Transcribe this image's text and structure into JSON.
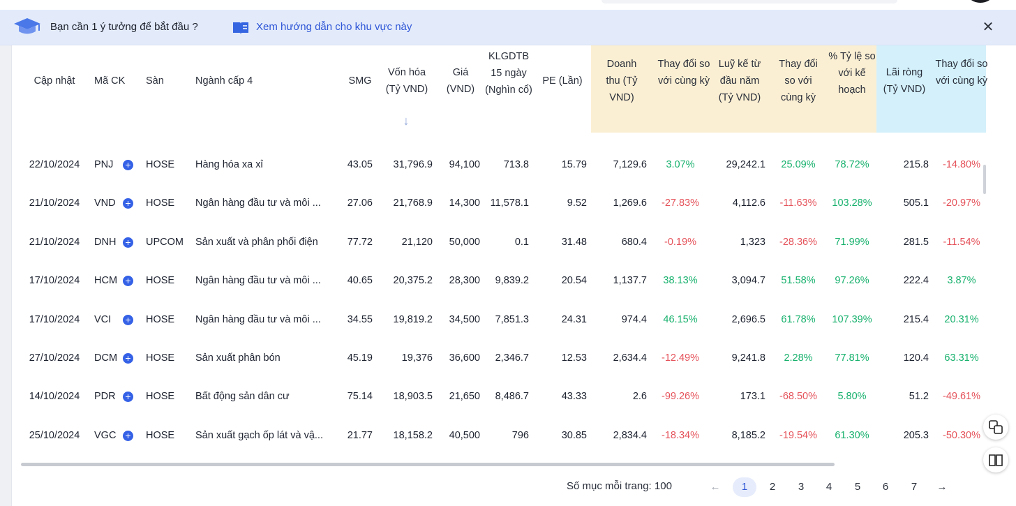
{
  "banner": {
    "idea_text": "Bạn cần 1 ý tưởng để bắt đầu ?",
    "guide_link": "Xem hướng dẫn cho khu vực này",
    "close_glyph": "✕",
    "icons": [
      "graduation-cap-icon",
      "book-icon",
      "close-icon"
    ],
    "colors": {
      "bg": "#e3ebfb",
      "link": "#2f56d6"
    }
  },
  "table": {
    "headers": {
      "updated": "Cập nhật",
      "ticker": "Mã CK",
      "exchange": "Sàn",
      "industry": "Ngành cấp 4",
      "smg": "SMG",
      "market_cap": "Vốn hóa (Tỷ VND)",
      "sort_glyph": "↓",
      "price": "Giá (VND)",
      "volume": "KLGDTB 15 ngày (Nghìn cổ)",
      "pe": "PE (Lần)",
      "revenue": "Doanh thu (Tỷ VND)",
      "revenue_change": "Thay đổi so với cùng kỳ",
      "ytd": "Luỹ kế từ đầu năm (Tỷ VND)",
      "ytd_change": "Thay đổi so với cùng kỳ",
      "plan_pct": "% Tỷ lệ so với kế hoạch",
      "net_profit": "Lãi ròng (Tỷ VND)",
      "profit_change": "Thay đổi so với cùng kỳ"
    },
    "header_colors": {
      "revenue_group": "#fbefd3",
      "profit_group": "#d3f0fb"
    },
    "rows": [
      {
        "date": "22/10/2024",
        "ticker": "PNJ",
        "exchange": "HOSE",
        "industry": "Hàng hóa xa xỉ",
        "smg": "43.05",
        "cap": "31,796.9",
        "price": "94,100",
        "vol": "713.8",
        "pe": "15.79",
        "rev": "7,129.6",
        "rev_chg": "3.07%",
        "ytd": "29,242.1",
        "ytd_chg": "25.09%",
        "plan": "78.72%",
        "profit": "215.8",
        "profit_chg": "-14.80%"
      },
      {
        "date": "21/10/2024",
        "ticker": "VND",
        "exchange": "HOSE",
        "industry": "Ngân hàng đầu tư và môi ...",
        "smg": "27.06",
        "cap": "21,768.9",
        "price": "14,300",
        "vol": "11,578.1",
        "pe": "9.52",
        "rev": "1,269.6",
        "rev_chg": "-27.83%",
        "ytd": "4,112.6",
        "ytd_chg": "-11.63%",
        "plan": "103.28%",
        "profit": "505.1",
        "profit_chg": "-20.97%"
      },
      {
        "date": "21/10/2024",
        "ticker": "DNH",
        "exchange": "UPCOM",
        "industry": "Sản xuất và phân phối điện",
        "smg": "77.72",
        "cap": "21,120",
        "price": "50,000",
        "vol": "0.1",
        "pe": "31.48",
        "rev": "680.4",
        "rev_chg": "-0.19%",
        "ytd": "1,323",
        "ytd_chg": "-28.36%",
        "plan": "71.99%",
        "profit": "281.5",
        "profit_chg": "-11.54%"
      },
      {
        "date": "17/10/2024",
        "ticker": "HCM",
        "exchange": "HOSE",
        "industry": "Ngân hàng đầu tư và môi ...",
        "smg": "40.65",
        "cap": "20,375.2",
        "price": "28,300",
        "vol": "9,839.2",
        "pe": "20.54",
        "rev": "1,137.7",
        "rev_chg": "38.13%",
        "ytd": "3,094.7",
        "ytd_chg": "51.58%",
        "plan": "97.26%",
        "profit": "222.4",
        "profit_chg": "3.87%"
      },
      {
        "date": "17/10/2024",
        "ticker": "VCI",
        "exchange": "HOSE",
        "industry": "Ngân hàng đầu tư và môi ...",
        "smg": "34.55",
        "cap": "19,819.2",
        "price": "34,500",
        "vol": "7,851.3",
        "pe": "24.31",
        "rev": "974.4",
        "rev_chg": "46.15%",
        "ytd": "2,696.5",
        "ytd_chg": "61.78%",
        "plan": "107.39%",
        "profit": "215.4",
        "profit_chg": "20.31%"
      },
      {
        "date": "27/10/2024",
        "ticker": "DCM",
        "exchange": "HOSE",
        "industry": "Sản xuất phân bón",
        "smg": "45.19",
        "cap": "19,376",
        "price": "36,600",
        "vol": "2,346.7",
        "pe": "12.53",
        "rev": "2,634.4",
        "rev_chg": "-12.49%",
        "ytd": "9,241.8",
        "ytd_chg": "2.28%",
        "plan": "77.81%",
        "profit": "120.4",
        "profit_chg": "63.31%"
      },
      {
        "date": "14/10/2024",
        "ticker": "PDR",
        "exchange": "HOSE",
        "industry": "Bất động sản dân cư",
        "smg": "75.14",
        "cap": "18,903.5",
        "price": "21,650",
        "vol": "8,486.7",
        "pe": "43.33",
        "rev": "2.6",
        "rev_chg": "-99.26%",
        "ytd": "173.1",
        "ytd_chg": "-68.50%",
        "plan": "5.80%",
        "profit": "51.2",
        "profit_chg": "-49.61%"
      },
      {
        "date": "25/10/2024",
        "ticker": "VGC",
        "exchange": "HOSE",
        "industry": "Sản xuất gạch ốp lát và vậ...",
        "smg": "21.77",
        "cap": "18,158.2",
        "price": "40,500",
        "vol": "796",
        "pe": "30.85",
        "rev": "2,834.4",
        "rev_chg": "-18.34%",
        "ytd": "8,185.2",
        "ytd_chg": "-19.54%",
        "plan": "61.30%",
        "profit": "205.3",
        "profit_chg": "-50.30%"
      }
    ],
    "plus_glyph": "+"
  },
  "pagination": {
    "per_page_label": "Số mục mỗi trang: 100",
    "prev": "←",
    "next": "→",
    "pages": [
      "1",
      "2",
      "3",
      "4",
      "5",
      "6",
      "7"
    ],
    "active_page": "1"
  },
  "floating": {
    "icons": [
      "translate-icon",
      "reader-icon"
    ]
  },
  "colors": {
    "positive": "#17b16d",
    "negative": "#e5535b",
    "accent": "#3461e6"
  }
}
